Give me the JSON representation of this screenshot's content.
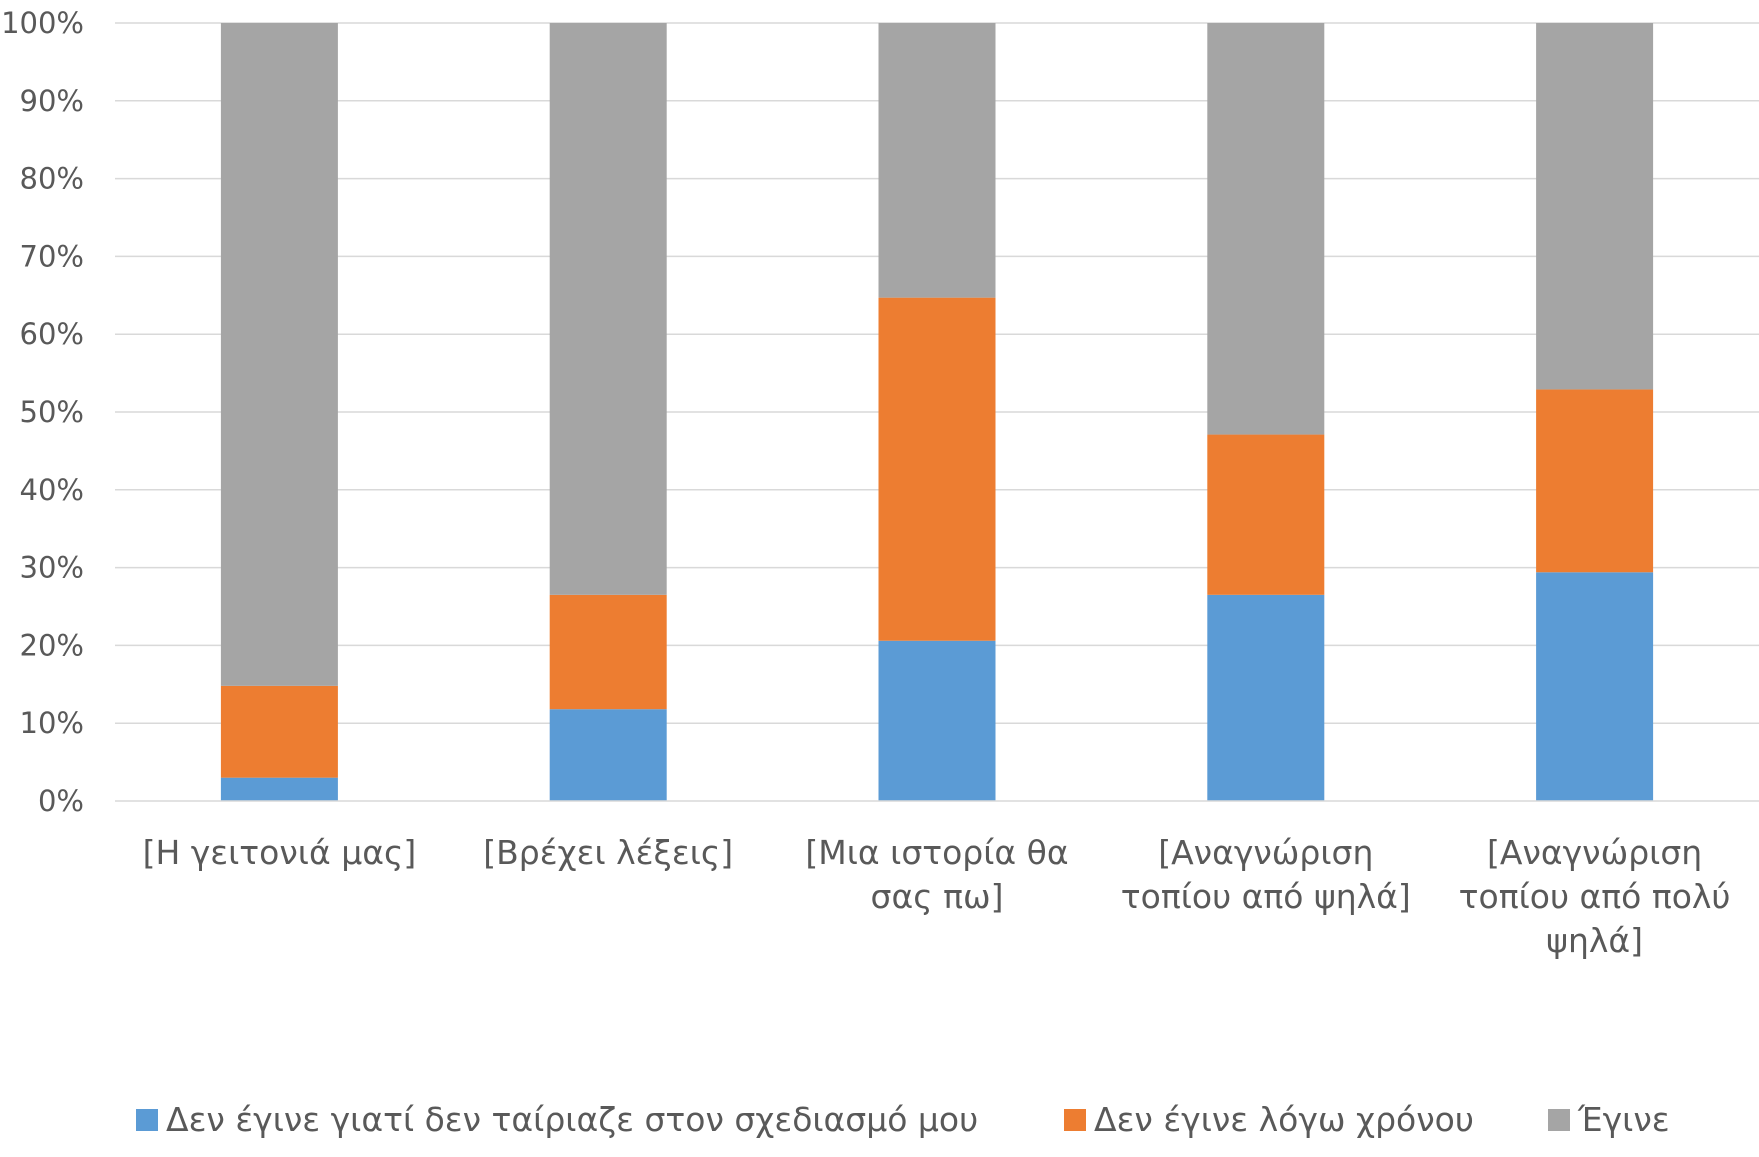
{
  "chart_data": {
    "type": "bar",
    "stacked": true,
    "percent_stacked": true,
    "title": "",
    "xlabel": "",
    "ylabel": "",
    "ylim": [
      0,
      100
    ],
    "y_ticks": [
      "0%",
      "10%",
      "20%",
      "30%",
      "40%",
      "50%",
      "60%",
      "70%",
      "80%",
      "90%",
      "100%"
    ],
    "grid": true,
    "legend_position": "bottom",
    "categories": [
      [
        "[Η γειτονιά μας]"
      ],
      [
        "[Βρέχει λέξεις]"
      ],
      [
        "[Μια ιστορία θα",
        "σας πω]"
      ],
      [
        "[Αναγνώριση",
        "τοπίου από ψηλά]"
      ],
      [
        "[Αναγνώριση",
        "τοπίου από πολύ",
        "ψηλά]"
      ]
    ],
    "series": [
      {
        "name": "Δεν έγινε γιατί δεν ταίριαζε στον σχεδιασμό μου",
        "color": "#5B9BD5",
        "values": [
          3,
          11.8,
          20.6,
          26.5,
          29.4
        ]
      },
      {
        "name": "Δεν έγινε λόγω χρόνου",
        "color": "#ED7D31",
        "values": [
          11.8,
          14.7,
          44.1,
          20.6,
          23.5
        ]
      },
      {
        "name": "Έγινε",
        "color": "#A5A5A5",
        "values": [
          85.2,
          73.5,
          35.3,
          52.9,
          47.1
        ]
      }
    ]
  }
}
